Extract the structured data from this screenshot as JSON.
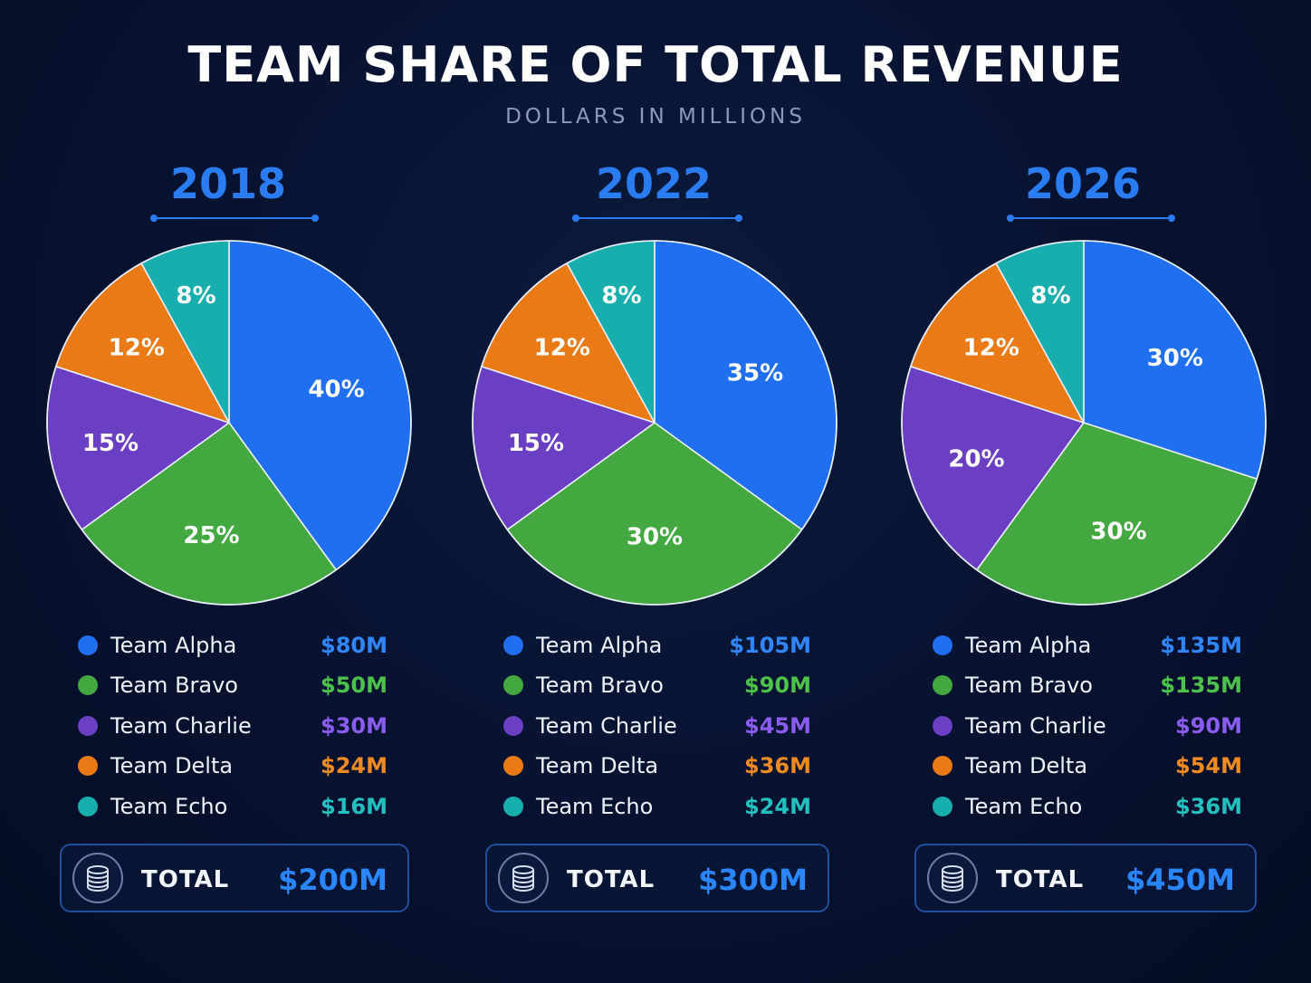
{
  "title": "TEAM SHARE OF TOTAL REVENUE",
  "subtitle": "DOLLARS IN MILLIONS",
  "colors": {
    "alpha": "#1f6ff0",
    "bravo": "#43a83f",
    "charlie": "#6a3fc4",
    "delta": "#ea7a16",
    "echo": "#19aeae",
    "accent": "#2a7cf2"
  },
  "legend_value_colors": {
    "alpha": "#2f86ff",
    "bravo": "#4cc24a",
    "charlie": "#8a5cf0",
    "delta": "#f08a22",
    "echo": "#23c0c0"
  },
  "total_label": "TOTAL",
  "total_icon": "coin-stack-icon",
  "chart_data": [
    {
      "type": "pie",
      "title": "2018",
      "categories": [
        "Team Alpha",
        "Team Bravo",
        "Team Charlie",
        "Team Delta",
        "Team Echo"
      ],
      "percent_labels": [
        "40%",
        "25%",
        "15%",
        "12%",
        "8%"
      ],
      "values": [
        80,
        50,
        30,
        24,
        16
      ],
      "value_labels": [
        "$80M",
        "$50M",
        "$30M",
        "$24M",
        "$16M"
      ],
      "total": "$200M"
    },
    {
      "type": "pie",
      "title": "2022",
      "categories": [
        "Team Alpha",
        "Team Bravo",
        "Team Charlie",
        "Team Delta",
        "Team Echo"
      ],
      "percent_labels": [
        "35%",
        "30%",
        "15%",
        "12%",
        "8%"
      ],
      "values": [
        105,
        90,
        45,
        36,
        24
      ],
      "value_labels": [
        "$105M",
        "$90M",
        "$45M",
        "$36M",
        "$24M"
      ],
      "total": "$300M"
    },
    {
      "type": "pie",
      "title": "2026",
      "categories": [
        "Team Alpha",
        "Team Bravo",
        "Team Charlie",
        "Team Delta",
        "Team Echo"
      ],
      "percent_labels": [
        "30%",
        "30%",
        "20%",
        "12%",
        "8%"
      ],
      "values": [
        135,
        135,
        90,
        54,
        36
      ],
      "value_labels": [
        "$135M",
        "$135M",
        "$90M",
        "$54M",
        "$36M"
      ],
      "total": "$450M"
    }
  ]
}
